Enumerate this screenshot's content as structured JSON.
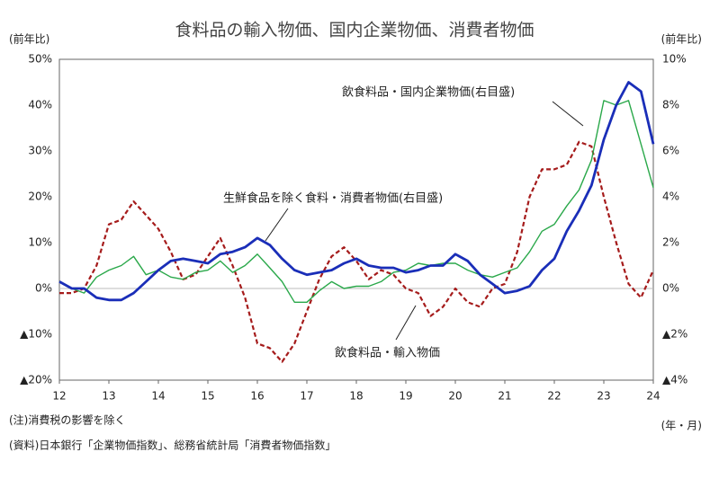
{
  "chart_data": {
    "type": "line",
    "title": "食料品の輸入物価、国内企業物価、消費者物価",
    "y_label": "(前年比)",
    "y2_label": "(前年比)",
    "x_label": "(年・月)",
    "notes": [
      "(注)消費税の影響を除く",
      "(資料)日本銀行「企業物価指数」、総務省統計局「消費者物価指数」"
    ],
    "x": [
      12,
      12.25,
      12.5,
      12.75,
      13,
      13.25,
      13.5,
      13.75,
      14,
      14.25,
      14.5,
      14.75,
      15,
      15.25,
      15.5,
      15.75,
      16,
      16.25,
      16.5,
      16.75,
      17,
      17.25,
      17.5,
      17.75,
      18,
      18.25,
      18.5,
      18.75,
      19,
      19.25,
      19.5,
      19.75,
      20,
      20.25,
      20.5,
      20.75,
      21,
      21.25,
      21.5,
      21.75,
      22,
      22.25,
      22.5,
      22.75,
      23,
      23.25,
      23.5,
      23.75,
      24
    ],
    "xlim": [
      12,
      24
    ],
    "xticks": [
      12,
      13,
      14,
      15,
      16,
      17,
      18,
      19,
      20,
      21,
      22,
      23,
      24
    ],
    "ylim": [
      -20,
      50
    ],
    "yticks": [
      {
        "value": -20,
        "label": "▲20%"
      },
      {
        "value": -10,
        "label": "▲10%"
      },
      {
        "value": 0,
        "label": "0%"
      },
      {
        "value": 10,
        "label": "10%"
      },
      {
        "value": 20,
        "label": "20%"
      },
      {
        "value": 30,
        "label": "30%"
      },
      {
        "value": 40,
        "label": "40%"
      },
      {
        "value": 50,
        "label": "50%"
      }
    ],
    "y2lim": [
      -4,
      10
    ],
    "y2ticks": [
      {
        "value": -4,
        "label": "▲4%"
      },
      {
        "value": -2,
        "label": "▲2%"
      },
      {
        "value": 0,
        "label": "0%"
      },
      {
        "value": 2,
        "label": "2%"
      },
      {
        "value": 4,
        "label": "4%"
      },
      {
        "value": 6,
        "label": "6%"
      },
      {
        "value": 8,
        "label": "8%"
      },
      {
        "value": 10,
        "label": "10%"
      }
    ],
    "series": [
      {
        "name": "飲食料品・輸入物価",
        "color": "#a51b1b",
        "dashed": true,
        "values": [
          -1,
          -1,
          0,
          5,
          14,
          15,
          19,
          16,
          13,
          8,
          2,
          3,
          7,
          11,
          5,
          -2,
          -12,
          -13,
          -16,
          -12,
          -5,
          2,
          7,
          9,
          6,
          2,
          4,
          3,
          0,
          -1,
          -6,
          -4,
          0,
          -3,
          -4,
          0,
          1,
          8,
          20,
          26,
          26,
          27,
          32,
          31,
          20,
          10,
          1,
          -2,
          4
        ]
      },
      {
        "name": "飲食料品・国内企業物価(右目盛)",
        "color": "#2aa84a",
        "axis": "y2",
        "values": [
          0.3,
          0,
          -0.2,
          0.5,
          0.8,
          1,
          1.4,
          0.6,
          0.8,
          0.5,
          0.4,
          0.7,
          0.8,
          1.2,
          0.7,
          1,
          1.5,
          0.9,
          0.3,
          -0.6,
          -0.6,
          -0.1,
          0.3,
          0,
          0.1,
          0.1,
          0.3,
          0.7,
          0.8,
          1.1,
          1,
          1.1,
          1.1,
          0.8,
          0.6,
          0.5,
          0.7,
          0.9,
          1.6,
          2.5,
          2.8,
          3.6,
          4.3,
          5.6,
          8.2,
          8,
          8.2,
          6.3,
          4.4
        ]
      },
      {
        "name": "生鮮食品を除く食料・消費者物価(右目盛)",
        "color": "#1a2eb8",
        "axis": "y2",
        "values": [
          0.3,
          0,
          0,
          -0.4,
          -0.5,
          -0.5,
          -0.2,
          0.3,
          0.8,
          1.2,
          1.3,
          1.2,
          1.1,
          1.5,
          1.6,
          1.8,
          2.2,
          1.9,
          1.3,
          0.8,
          0.6,
          0.7,
          0.8,
          1.1,
          1.3,
          1,
          0.9,
          0.9,
          0.7,
          0.8,
          1,
          1,
          1.5,
          1.2,
          0.6,
          0.2,
          -0.2,
          -0.1,
          0.1,
          0.8,
          1.3,
          2.5,
          3.4,
          4.5,
          6.5,
          8,
          9,
          8.6,
          6.3
        ]
      }
    ]
  }
}
